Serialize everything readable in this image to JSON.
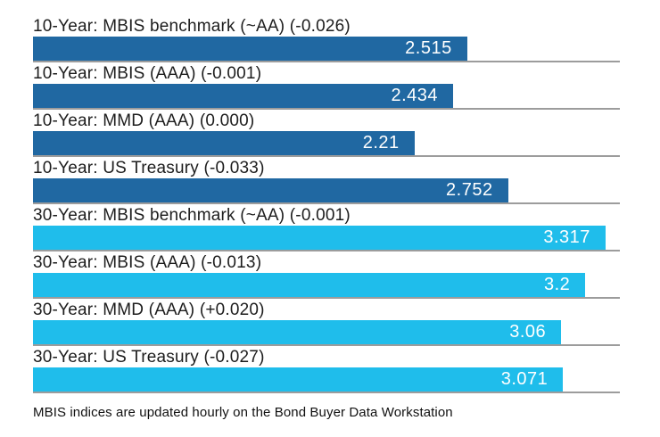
{
  "chart_data": {
    "type": "bar",
    "orientation": "horizontal",
    "title": "",
    "xlabel": "",
    "ylabel": "",
    "xlim": [
      0,
      3.4
    ],
    "grid": false,
    "legend": "none",
    "colors": {
      "10-year": "#2068A2",
      "30-year": "#1FBDEB"
    },
    "baseline_color": "#9c9c9c",
    "rows": [
      {
        "label": "10-Year: MBIS benchmark (~AA) (-0.026)",
        "value": 2.515,
        "display": "2.515",
        "group": "10-year"
      },
      {
        "label": "10-Year: MBIS (AAA) (-0.001)",
        "value": 2.434,
        "display": "2.434",
        "group": "10-year"
      },
      {
        "label": "10-Year: MMD (AAA) (0.000)",
        "value": 2.21,
        "display": "2.21",
        "group": "10-year"
      },
      {
        "label": "10-Year: US Treasury (-0.033)",
        "value": 2.752,
        "display": "2.752",
        "group": "10-year"
      },
      {
        "label": "30-Year: MBIS benchmark (~AA) (-0.001)",
        "value": 3.317,
        "display": "3.317",
        "group": "30-year"
      },
      {
        "label": "30-Year: MBIS (AAA) (-0.013)",
        "value": 3.2,
        "display": "3.2",
        "group": "30-year"
      },
      {
        "label": "30-Year: MMD (AAA) (+0.020)",
        "value": 3.06,
        "display": "3.06",
        "group": "30-year"
      },
      {
        "label": "30-Year: US Treasury (-0.027)",
        "value": 3.071,
        "display": "3.071",
        "group": "30-year"
      }
    ],
    "footnote": "MBIS indices are updated hourly on the Bond Buyer Data Workstation"
  }
}
